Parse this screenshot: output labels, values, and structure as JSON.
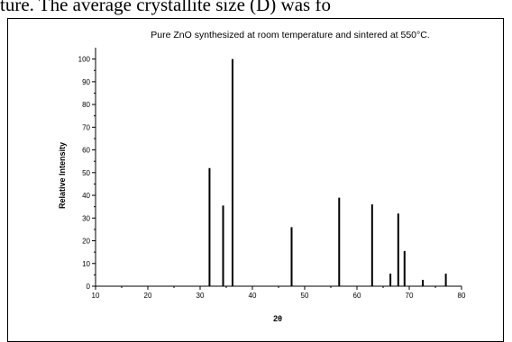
{
  "page": {
    "caption_fragment": "ture.  The average   crystallite size (D) was fo"
  },
  "chart_data": {
    "type": "bar",
    "title": "Pure ZnO synthesized at room temperature and sintered at 550°C.",
    "xlabel": "2θ",
    "ylabel": "Relative Intensity",
    "xlim": [
      10,
      80
    ],
    "ylim": [
      0,
      105
    ],
    "xticks": [
      10,
      20,
      30,
      40,
      50,
      60,
      70,
      80
    ],
    "yticks": [
      0,
      10,
      20,
      30,
      40,
      50,
      60,
      70,
      80,
      90,
      100
    ],
    "grid": false,
    "legend": "none",
    "color": "#000000",
    "peaks": [
      {
        "x": 31.8,
        "y": 52
      },
      {
        "x": 34.4,
        "y": 35.5
      },
      {
        "x": 36.2,
        "y": 100
      },
      {
        "x": 47.5,
        "y": 26
      },
      {
        "x": 56.6,
        "y": 39
      },
      {
        "x": 62.9,
        "y": 36
      },
      {
        "x": 66.4,
        "y": 5.5
      },
      {
        "x": 67.9,
        "y": 32
      },
      {
        "x": 69.1,
        "y": 15.5
      },
      {
        "x": 72.6,
        "y": 2.8
      },
      {
        "x": 77.0,
        "y": 5.5
      }
    ]
  }
}
